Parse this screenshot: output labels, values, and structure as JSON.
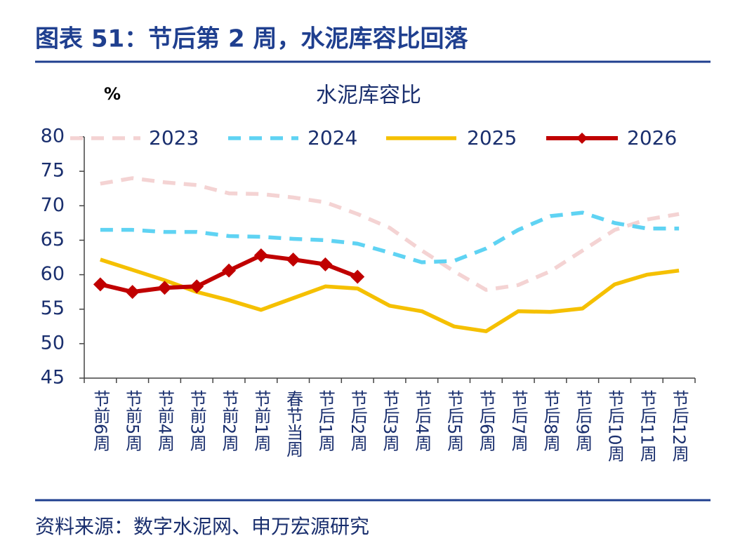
{
  "header": {
    "title": "图表 51：节后第 2 周，水泥库容比回落"
  },
  "chart_data": {
    "type": "line",
    "title": "水泥库容比",
    "y_label": "%",
    "categories": [
      "节前6周",
      "节前5周",
      "节前4周",
      "节前3周",
      "节前2周",
      "节前1周",
      "春节当周",
      "节后1周",
      "节后2周",
      "节后3周",
      "节后4周",
      "节后5周",
      "节后6周",
      "节后7周",
      "节后8周",
      "节后9周",
      "节后10周",
      "节后11周",
      "节后12周"
    ],
    "series": [
      {
        "name": "2023",
        "color": "#f4d3d3",
        "dash": true,
        "markers": false,
        "values": [
          73.2,
          74.0,
          73.4,
          73.0,
          71.8,
          71.7,
          71.2,
          70.5,
          68.8,
          66.8,
          63.5,
          60.5,
          57.8,
          58.5,
          60.5,
          63.5,
          66.5,
          68.0,
          68.8
        ]
      },
      {
        "name": "2024",
        "color": "#5fd3f3",
        "dash": true,
        "markers": false,
        "values": [
          66.5,
          66.5,
          66.2,
          66.2,
          65.6,
          65.5,
          65.2,
          65.0,
          64.5,
          63.2,
          61.8,
          62.0,
          63.8,
          66.5,
          68.5,
          69.0,
          67.5,
          66.7,
          66.7
        ]
      },
      {
        "name": "2025",
        "color": "#f5c000",
        "dash": false,
        "markers": false,
        "values": [
          62.2,
          60.7,
          59.2,
          57.5,
          56.3,
          54.9,
          56.6,
          58.3,
          58.0,
          55.5,
          54.7,
          52.5,
          51.8,
          54.7,
          54.6,
          55.1,
          58.6,
          60.0,
          60.6
        ]
      },
      {
        "name": "2026",
        "color": "#c00000",
        "dash": false,
        "markers": true,
        "values": [
          58.6,
          57.5,
          58.1,
          58.3,
          60.6,
          62.8,
          62.2,
          61.5,
          59.7,
          null,
          null,
          null,
          null,
          null,
          null,
          null,
          null,
          null,
          null
        ]
      }
    ],
    "ylim": [
      45,
      80
    ],
    "yticks": [
      45,
      50,
      55,
      60,
      65,
      70,
      75,
      80
    ]
  },
  "source": "资料来源：数字水泥网、申万宏源研究"
}
